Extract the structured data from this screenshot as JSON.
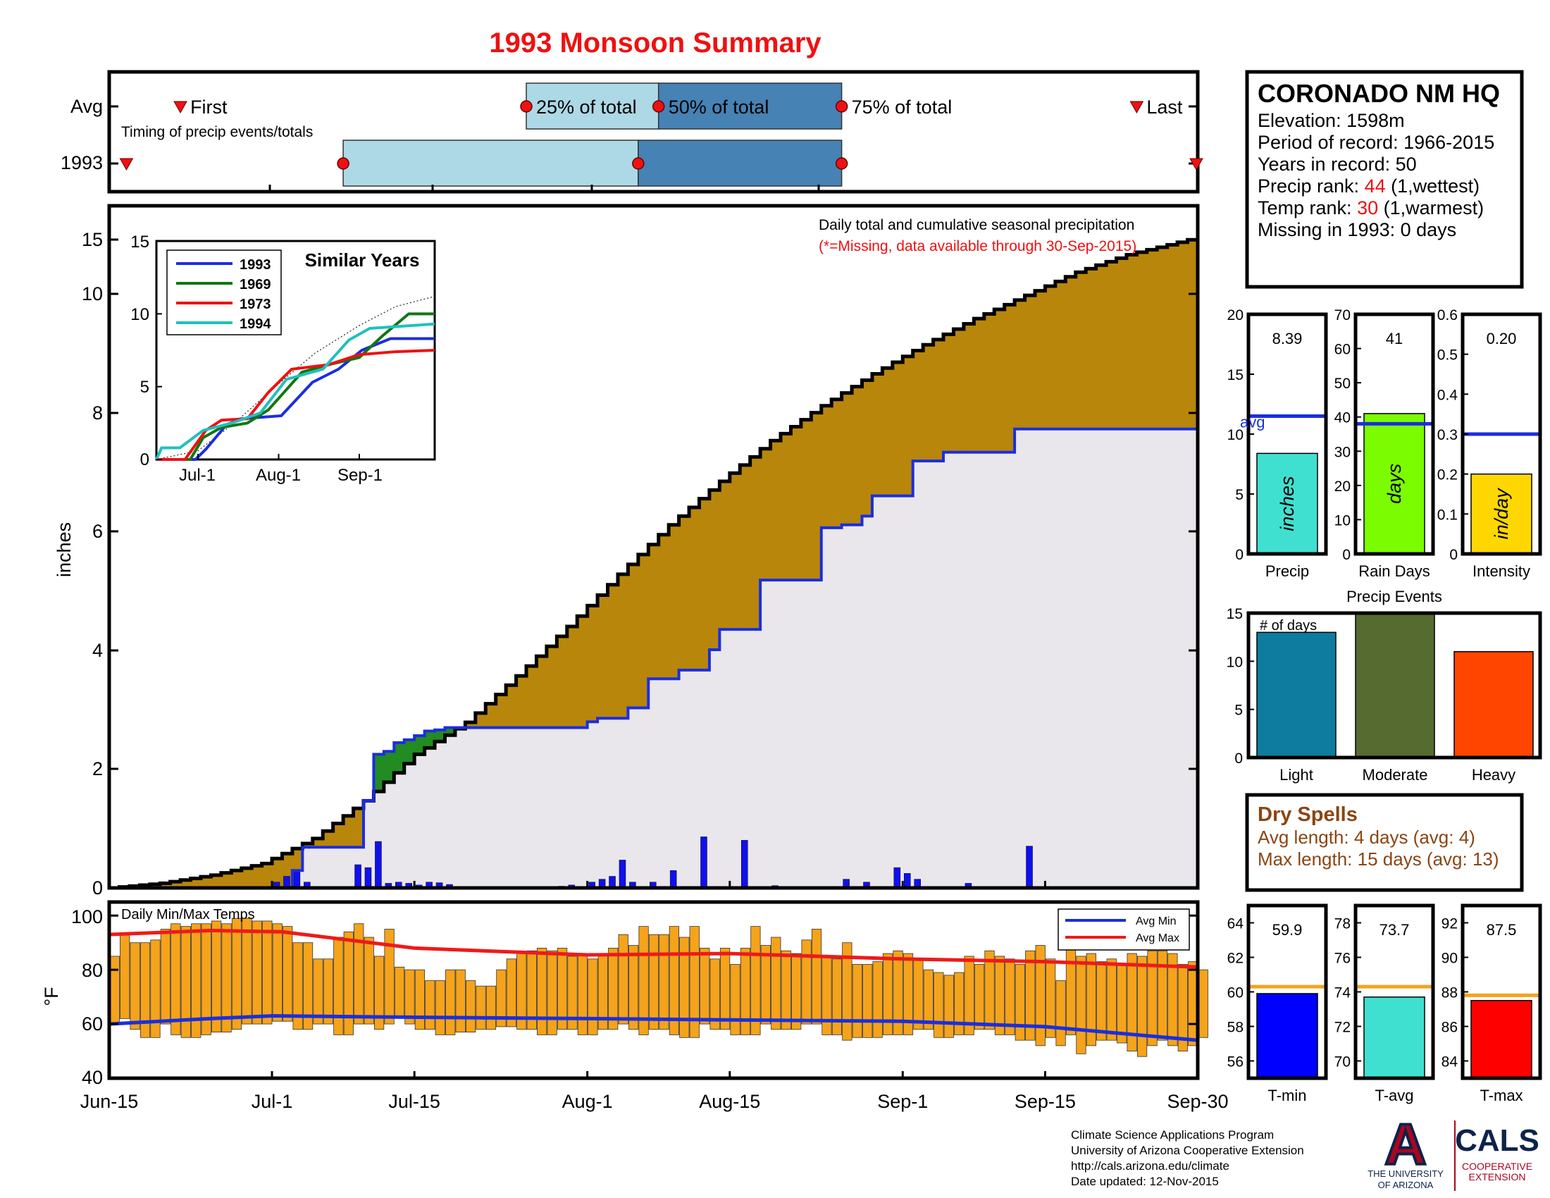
{
  "title": "1993 Monsoon Summary",
  "colors": {
    "title": "#ee1111",
    "bar_light": "#add8e6",
    "bar_dark": "#4682b4",
    "marker": "#ee1111",
    "excess_fill": "#b8860b",
    "deficit_fill": "#228b22",
    "below_fill": "#e9e7ec",
    "daily_bar": "#1010ee",
    "temp_bar": "#f5a31a",
    "avg_min_line": "#1a2ee0",
    "avg_max_line": "#ee1a1a",
    "precip_bar": "#40e0d0",
    "raindays_bar": "#7cfc00",
    "intensity_bar": "#ffd700",
    "events_light": "#0e7c9e",
    "events_moderate": "#556b2f",
    "events_heavy": "#ff4500",
    "tmin_bar": "#0000ff",
    "tavg_bar": "#40e0d0",
    "tmax_bar": "#ff0000",
    "avg_line_blue": "#1a2ee0",
    "avg_line_orange": "#f5a31a",
    "dry_spell": "#8b4513",
    "rank": "#ee1111",
    "ua_red": "#ab0520",
    "ua_blue": "#0c234b",
    "similar_1993": "#1a2ee0",
    "similar_1969": "#117711",
    "similar_1973": "#ee1111",
    "similar_1994": "#20c0c0"
  },
  "timing": {
    "row_avg_label": "Avg",
    "row_year_label": "1993",
    "first_label": "First",
    "last_label": "Last",
    "p25_label": "25% of total",
    "p50_label": "50% of total",
    "p75_label": "75% of total",
    "caption": "Timing of precip events/totals",
    "avg": {
      "first": "2015-06-22",
      "p25": "2015-07-26",
      "p50": "2015-08-08",
      "p75": "2015-08-26",
      "last": "2015-09-24"
    },
    "year": {
      "first": "2015-06-16",
      "p25": "2015-07-08",
      "p50": "2015-08-06",
      "p75": "2015-08-26",
      "last": "2015-09-30"
    }
  },
  "station": {
    "name": "CORONADO NM HQ",
    "elevation": "Elevation: 1598m",
    "period": "Period of record: 1966-2015",
    "years": "Years in record: 50",
    "precip_rank_prefix": "Precip rank: ",
    "precip_rank_value": "44",
    "precip_rank_suffix": " (1,wettest)",
    "temp_rank_prefix": "Temp rank: ",
    "temp_rank_value": "30",
    "temp_rank_suffix": " (1,warmest)",
    "missing": "Missing in 1993: 0 days"
  },
  "precip_panel": {
    "note_line1": "Daily total and cumulative seasonal precipitation",
    "note_line2": "(*=Missing, data available through 30-Sep-2015)",
    "ylabel": "inches",
    "y_ticks": [
      "0",
      "2",
      "4",
      "6",
      "8",
      "10",
      "15"
    ]
  },
  "similar_years": {
    "title": "Similar Years",
    "years": [
      "1993",
      "1969",
      "1973",
      "1994"
    ],
    "y_ticks": [
      "0",
      "5",
      "10",
      "15"
    ],
    "x_ticks": [
      "Jul-1",
      "Aug-1",
      "Sep-1"
    ]
  },
  "temp_panel": {
    "label": "Daily Min/Max Temps",
    "ylabel": "°F",
    "y_ticks": [
      "40",
      "60",
      "80",
      "100"
    ],
    "legend_min": "Avg Min",
    "legend_max": "Avg Max"
  },
  "x_axis_labels": [
    "Jun-15",
    "Jul-1",
    "Jul-15",
    "Aug-1",
    "Aug-15",
    "Sep-1",
    "Sep-15",
    "Sep-30"
  ],
  "stats_precip": {
    "precip": {
      "value": "8.39",
      "inner": "inches",
      "label": "Precip",
      "ticks": [
        "0",
        "5",
        "10",
        "15",
        "20"
      ],
      "avg_label": "avg"
    },
    "raindays": {
      "value": "41",
      "inner": "days",
      "label": "Rain Days",
      "ticks": [
        "0",
        "10",
        "20",
        "30",
        "40",
        "50",
        "60",
        "70"
      ]
    },
    "intensity": {
      "value": "0.20",
      "inner": "in/day",
      "label": "Intensity",
      "ticks": [
        "0",
        "0.1",
        "0.2",
        "0.3",
        "0.4",
        "0.5",
        "0.6"
      ]
    }
  },
  "events": {
    "title": "Precip Events",
    "inner_label": "# of days",
    "ticks": [
      "0",
      "5",
      "10",
      "15"
    ],
    "categories": [
      "Light",
      "Moderate",
      "Heavy"
    ]
  },
  "dry_spells": {
    "title": "Dry Spells",
    "avg_line": "Avg length: 4 days (avg: 4)",
    "max_line": "Max length: 15 days (avg: 13)"
  },
  "stats_temp": {
    "tmin": {
      "value": "59.9",
      "label": "T-min",
      "ticks": [
        "56",
        "58",
        "60",
        "62",
        "64"
      ]
    },
    "tavg": {
      "value": "73.7",
      "label": "T-avg",
      "ticks": [
        "70",
        "72",
        "74",
        "76",
        "78"
      ]
    },
    "tmax": {
      "value": "87.5",
      "label": "T-max",
      "ticks": [
        "84",
        "86",
        "88",
        "90",
        "92"
      ]
    }
  },
  "footer": {
    "line1": "Climate Science Applications Program",
    "line2": "University of Arizona Cooperative Extension",
    "line3": "http://cals.arizona.edu/climate",
    "line4": " Date updated: 12-Nov-2015"
  },
  "logo": {
    "letter": "A",
    "ua_line1": "THE UNIVERSITY",
    "ua_line2": "OF ARIZONA",
    "cals": "CALS",
    "cals_sub1": "COOPERATIVE",
    "cals_sub2": "EXTENSION"
  },
  "chart_data": [
    {
      "type": "area",
      "name": "cumulative_precip",
      "x_start": "2015-06-15",
      "x_end": "2015-09-30",
      "ylim": [
        0,
        11.5
      ],
      "avg_cumulative": {
        "x": [
          "2015-06-15",
          "2015-06-20",
          "2015-06-25",
          "2015-06-30",
          "2015-07-05",
          "2015-07-10",
          "2015-07-15",
          "2015-07-20",
          "2015-07-25",
          "2015-07-30",
          "2015-08-04",
          "2015-08-09",
          "2015-08-14",
          "2015-08-19",
          "2015-08-24",
          "2015-08-29",
          "2015-09-03",
          "2015-09-08",
          "2015-09-13",
          "2015-09-18",
          "2015-09-23",
          "2015-09-30"
        ],
        "y": [
          0,
          0.08,
          0.22,
          0.42,
          0.85,
          1.5,
          2.3,
          2.85,
          3.65,
          4.5,
          5.4,
          6.25,
          7.0,
          7.7,
          8.3,
          8.85,
          9.35,
          9.8,
          10.2,
          10.6,
          10.9,
          11.2
        ]
      },
      "cumulative_1993": {
        "x": [
          "2015-06-15",
          "2015-06-30",
          "2015-07-03",
          "2015-07-04",
          "2015-07-09",
          "2015-07-10",
          "2015-07-11",
          "2015-07-12",
          "2015-07-13",
          "2015-07-14",
          "2015-07-15",
          "2015-07-16",
          "2015-07-17",
          "2015-07-18",
          "2015-07-29",
          "2015-08-01",
          "2015-08-02",
          "2015-08-05",
          "2015-08-07",
          "2015-08-10",
          "2015-08-13",
          "2015-08-14",
          "2015-08-18",
          "2015-08-22",
          "2015-08-24",
          "2015-08-26",
          "2015-08-28",
          "2015-08-29",
          "2015-09-02",
          "2015-09-05",
          "2015-09-12",
          "2015-09-30"
        ],
        "y": [
          0,
          0,
          0.3,
          0.7,
          0.7,
          1.5,
          2.3,
          2.35,
          2.5,
          2.55,
          2.62,
          2.7,
          2.72,
          2.76,
          2.76,
          2.86,
          2.92,
          3.1,
          3.6,
          3.75,
          4.1,
          4.45,
          5.3,
          5.3,
          6.2,
          6.25,
          6.4,
          6.75,
          7.35,
          7.5,
          7.9,
          8.3
        ]
      },
      "daily_1993": {
        "x": [
          "2015-07-01",
          "2015-07-02",
          "2015-07-03",
          "2015-07-04",
          "2015-07-09",
          "2015-07-10",
          "2015-07-11",
          "2015-07-12",
          "2015-07-13",
          "2015-07-14",
          "2015-07-15",
          "2015-07-16",
          "2015-07-17",
          "2015-07-18",
          "2015-07-29",
          "2015-07-30",
          "2015-08-01",
          "2015-08-02",
          "2015-08-03",
          "2015-08-04",
          "2015-08-05",
          "2015-08-07",
          "2015-08-09",
          "2015-08-12",
          "2015-08-16",
          "2015-08-19",
          "2015-08-26",
          "2015-08-28",
          "2015-08-31",
          "2015-09-01",
          "2015-09-02",
          "2015-09-07",
          "2015-09-13"
        ],
        "y": [
          0.1,
          0.2,
          0.3,
          0.1,
          0.4,
          0.35,
          0.8,
          0.08,
          0.1,
          0.08,
          0.05,
          0.1,
          0.09,
          0.06,
          0.03,
          0.05,
          0.1,
          0.15,
          0.2,
          0.48,
          0.1,
          0.1,
          0.3,
          0.88,
          0.82,
          0.04,
          0.15,
          0.1,
          0.35,
          0.25,
          0.15,
          0.08,
          0.72
        ]
      }
    },
    {
      "type": "line",
      "name": "similar_years",
      "x_start": "2015-06-15",
      "x_end": "2015-09-30",
      "ylim": [
        0,
        15
      ],
      "avg": {
        "x": [
          "2015-06-15",
          "2015-07-01",
          "2015-07-15",
          "2015-08-01",
          "2015-08-15",
          "2015-09-01",
          "2015-09-15",
          "2015-09-30"
        ],
        "y": [
          0,
          0.6,
          2.5,
          5.2,
          7.3,
          9.2,
          10.5,
          11.2
        ]
      },
      "series": [
        {
          "name": "1993",
          "x": [
            "2015-06-15",
            "2015-06-30",
            "2015-07-04",
            "2015-07-12",
            "2015-07-18",
            "2015-08-02",
            "2015-08-14",
            "2015-08-24",
            "2015-09-02",
            "2015-09-13",
            "2015-09-30"
          ],
          "y": [
            0,
            0,
            0.7,
            2.4,
            2.8,
            3.0,
            5.3,
            6.2,
            7.5,
            8.3,
            8.3
          ]
        },
        {
          "name": "1969",
          "x": [
            "2015-06-15",
            "2015-06-28",
            "2015-07-03",
            "2015-07-10",
            "2015-07-20",
            "2015-07-28",
            "2015-08-10",
            "2015-08-20",
            "2015-09-01",
            "2015-09-10",
            "2015-09-20",
            "2015-09-30"
          ],
          "y": [
            0,
            0,
            1.5,
            2.2,
            2.5,
            3.4,
            6.0,
            6.5,
            7.0,
            8.5,
            10.0,
            10.0
          ]
        },
        {
          "name": "1973",
          "x": [
            "2015-06-15",
            "2015-06-26",
            "2015-07-04",
            "2015-07-10",
            "2015-07-20",
            "2015-07-28",
            "2015-08-06",
            "2015-08-20",
            "2015-09-01",
            "2015-09-15",
            "2015-09-30"
          ],
          "y": [
            0,
            0,
            2.0,
            2.7,
            2.8,
            4.6,
            6.2,
            6.5,
            7.2,
            7.4,
            7.5
          ]
        },
        {
          "name": "1994",
          "x": [
            "2015-06-15",
            "2015-06-17",
            "2015-06-24",
            "2015-07-03",
            "2015-07-14",
            "2015-07-25",
            "2015-08-04",
            "2015-08-18",
            "2015-08-28",
            "2015-09-05",
            "2015-09-30"
          ],
          "y": [
            0,
            0.8,
            0.8,
            2.0,
            2.5,
            3.2,
            5.5,
            6.2,
            8.2,
            9.0,
            9.3
          ]
        }
      ]
    },
    {
      "type": "bar",
      "name": "daily_temps",
      "x_start": "2015-06-15",
      "ylim": [
        40,
        100
      ],
      "tmax": [
        85,
        93,
        90,
        90,
        91,
        95,
        97,
        96,
        97,
        97,
        98,
        97,
        99,
        99,
        98,
        98,
        97,
        96,
        90,
        90,
        84,
        84,
        92,
        94,
        97,
        92,
        85,
        95,
        81,
        80,
        80,
        76,
        76,
        80,
        80,
        76,
        74,
        74,
        80,
        84,
        86,
        87,
        88,
        87,
        88,
        85,
        86,
        84,
        86,
        88,
        93,
        89,
        96,
        93,
        93,
        96,
        92,
        96,
        88,
        84,
        88,
        82,
        88,
        96,
        89,
        92,
        87,
        86,
        91,
        95,
        85,
        84,
        90,
        82,
        82,
        83,
        86,
        87,
        86,
        84,
        80,
        79,
        78,
        79,
        85,
        82,
        87,
        85,
        84,
        82,
        87,
        89,
        84,
        76,
        88,
        85,
        86,
        83,
        84,
        82,
        86,
        85,
        87,
        87,
        86,
        82,
        83,
        80
      ],
      "tmin": [
        60,
        62,
        58,
        55,
        55,
        60,
        56,
        55,
        55,
        56,
        57,
        57,
        58,
        60,
        60,
        60,
        61,
        61,
        58,
        58,
        60,
        60,
        56,
        56,
        60,
        60,
        58,
        60,
        63,
        60,
        58,
        58,
        56,
        56,
        57,
        57,
        58,
        58,
        59,
        59,
        58,
        58,
        56,
        56,
        58,
        58,
        56,
        56,
        58,
        58,
        60,
        58,
        56,
        58,
        58,
        56,
        55,
        55,
        60,
        58,
        58,
        56,
        56,
        56,
        60,
        58,
        58,
        58,
        60,
        60,
        56,
        56,
        54,
        55,
        55,
        55,
        56,
        56,
        56,
        58,
        58,
        55,
        55,
        56,
        56,
        58,
        58,
        56,
        56,
        54,
        54,
        52,
        55,
        52,
        56,
        49,
        52,
        54,
        54,
        53,
        50,
        48,
        52,
        54,
        52,
        50,
        52,
        55
      ],
      "avg_max": {
        "x": [
          "2015-06-15",
          "2015-06-25",
          "2015-07-02",
          "2015-07-15",
          "2015-08-01",
          "2015-08-15",
          "2015-09-01",
          "2015-09-15",
          "2015-09-30"
        ],
        "y": [
          93,
          94.5,
          94,
          88,
          85.5,
          86,
          84,
          83,
          81
        ]
      },
      "avg_min": {
        "x": [
          "2015-06-15",
          "2015-06-25",
          "2015-07-01",
          "2015-07-15",
          "2015-08-01",
          "2015-08-15",
          "2015-09-01",
          "2015-09-15",
          "2015-09-30"
        ],
        "y": [
          60,
          62,
          63,
          62.5,
          62,
          61.5,
          61,
          59,
          54
        ]
      }
    },
    {
      "type": "bar",
      "name": "seasonal_stats",
      "categories": [
        "Precip",
        "Rain Days",
        "Intensity"
      ],
      "values": [
        8.39,
        41,
        0.2
      ],
      "avg": [
        11.5,
        38,
        0.3
      ],
      "ylims": [
        [
          0,
          20
        ],
        [
          0,
          70
        ],
        [
          0,
          0.6
        ]
      ]
    },
    {
      "type": "bar",
      "name": "precip_events",
      "categories": [
        "Light",
        "Moderate",
        "Heavy"
      ],
      "values": [
        13,
        15,
        11
      ],
      "ylim": [
        0,
        15
      ]
    },
    {
      "type": "bar",
      "name": "seasonal_temps",
      "categories": [
        "T-min",
        "T-avg",
        "T-max"
      ],
      "values": [
        59.9,
        73.7,
        87.5
      ],
      "avg": [
        60.3,
        74.3,
        87.8
      ],
      "ylims": [
        [
          55,
          65
        ],
        [
          69,
          79
        ],
        [
          83,
          93
        ]
      ]
    }
  ]
}
